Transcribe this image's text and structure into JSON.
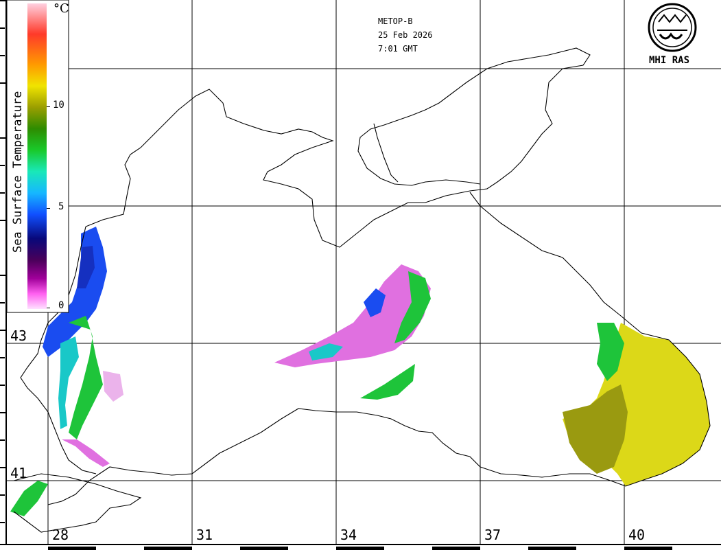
{
  "header": {
    "satellite": "METOP-B",
    "date": "25 Feb 2026",
    "time": "7:01 GMT"
  },
  "logo": {
    "text": "MHI RAS",
    "icon": "mhi-ras-emblem-icon"
  },
  "legend": {
    "title": "Sea Surface Temperature",
    "unit": "°C",
    "ticks": [
      "10",
      "5",
      "0"
    ],
    "colors": [
      "#ffc8d8",
      "#ff3a2a",
      "#ff9a00",
      "#f0e400",
      "#9a9e00",
      "#2e8c00",
      "#19c92a",
      "#19e8b8",
      "#16b8ff",
      "#1050ff",
      "#08087a",
      "#4a005a",
      "#a0009a",
      "#ff60f0",
      "#ffe0ff"
    ]
  },
  "grid": {
    "latitude_labels": [
      "43",
      "41"
    ],
    "longitude_labels": [
      "28",
      "31",
      "34",
      "37",
      "40"
    ]
  },
  "colors": {
    "coastline": "#000000",
    "grid": "#000000",
    "warm_water": "#dcd818",
    "olive": "#9a9a10",
    "green": "#1ec43a",
    "cyan": "#19c8c8",
    "blue": "#1a4cf0",
    "magenta": "#e070e0"
  }
}
